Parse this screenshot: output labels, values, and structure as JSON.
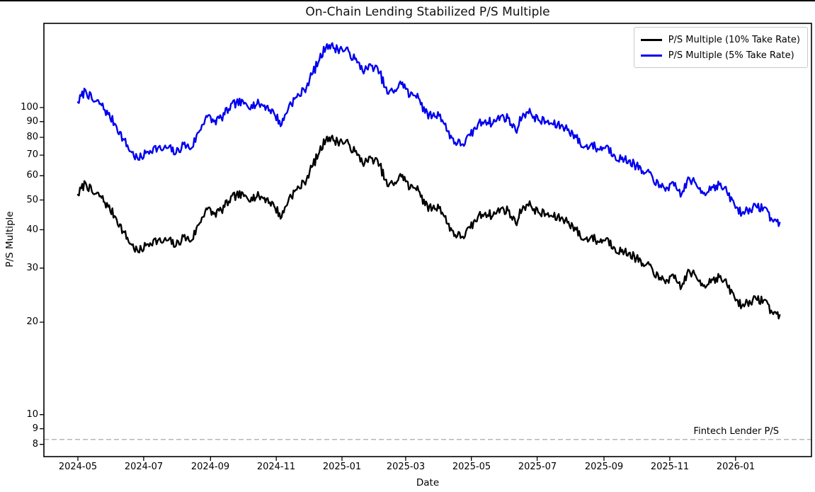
{
  "title": "On-Chain Lending Stabilized P/S Multiple",
  "axes": {
    "xlabel": "Date",
    "ylabel": "P/S Multiple"
  },
  "legend": {
    "items": [
      {
        "label": "P/S Multiple (10% Take Rate)",
        "color": "#000000"
      },
      {
        "label": "P/S Multiple (5% Take Rate)",
        "color": "#0000ee"
      }
    ]
  },
  "annotation": {
    "label": "Fintech Lender P/S",
    "value": 8.3
  },
  "chart_data": {
    "type": "line",
    "yscale": "log",
    "grid": false,
    "legend_position": "upper right",
    "title": "On-Chain Lending Stabilized P/S Multiple",
    "xlabel": "Date",
    "ylabel": "P/S Multiple",
    "x_tick_labels": [
      "2024-05",
      "2024-07",
      "2024-09",
      "2024-11",
      "2025-01",
      "2025-03",
      "2025-05",
      "2025-07",
      "2025-09",
      "2025-11",
      "2026-01"
    ],
    "y_ticks": [
      100,
      90,
      80,
      70,
      60,
      50,
      40,
      30,
      20,
      10,
      9,
      8
    ],
    "ylim": [
      7.3,
      188
    ],
    "hline": {
      "value": 8.3,
      "label": "Fintech Lender P/S",
      "color": "#b0b0b0",
      "style": "dashed"
    },
    "dates": [
      "2024-05-01",
      "2024-05-08",
      "2024-05-15",
      "2024-05-22",
      "2024-05-29",
      "2024-06-05",
      "2024-06-12",
      "2024-06-19",
      "2024-06-26",
      "2024-07-03",
      "2024-07-10",
      "2024-07-17",
      "2024-07-24",
      "2024-07-31",
      "2024-08-07",
      "2024-08-14",
      "2024-08-21",
      "2024-08-28",
      "2024-09-04",
      "2024-09-11",
      "2024-09-18",
      "2024-09-25",
      "2024-10-02",
      "2024-10-09",
      "2024-10-16",
      "2024-10-23",
      "2024-10-30",
      "2024-11-06",
      "2024-11-13",
      "2024-11-20",
      "2024-11-27",
      "2024-12-04",
      "2024-12-11",
      "2024-12-18",
      "2024-12-25",
      "2025-01-01",
      "2025-01-08",
      "2025-01-15",
      "2025-01-22",
      "2025-01-29",
      "2025-02-05",
      "2025-02-12",
      "2025-02-19",
      "2025-02-26",
      "2025-03-05",
      "2025-03-12",
      "2025-03-19",
      "2025-03-26",
      "2025-04-02",
      "2025-04-09",
      "2025-04-16",
      "2025-04-23",
      "2025-04-30",
      "2025-05-07",
      "2025-05-14",
      "2025-05-21",
      "2025-05-28",
      "2025-06-04",
      "2025-06-11",
      "2025-06-18",
      "2025-06-25",
      "2025-07-02",
      "2025-07-09",
      "2025-07-16",
      "2025-07-23",
      "2025-07-30",
      "2025-08-06",
      "2025-08-13",
      "2025-08-20",
      "2025-08-27",
      "2025-09-03",
      "2025-09-10",
      "2025-09-17",
      "2025-09-24",
      "2025-10-01",
      "2025-10-08",
      "2025-10-15",
      "2025-10-22",
      "2025-10-29",
      "2025-11-05",
      "2025-11-12",
      "2025-11-19",
      "2025-11-26",
      "2025-12-03",
      "2025-12-10",
      "2025-12-17",
      "2025-12-24",
      "2025-12-31",
      "2026-01-07",
      "2026-01-14",
      "2026-01-21",
      "2026-01-28",
      "2026-02-04",
      "2026-02-11"
    ],
    "series": [
      {
        "name": "P/S Multiple (10% Take Rate)",
        "color": "#000000",
        "values": [
          52,
          57,
          52.5,
          51.5,
          47.5,
          44,
          39.5,
          36,
          33.8,
          35.5,
          37,
          36.5,
          37,
          35.5,
          38,
          36.8,
          41.5,
          47,
          45,
          46.3,
          49.5,
          52,
          51.4,
          51,
          51.4,
          50.5,
          47.8,
          44,
          51,
          54,
          57,
          64,
          71.5,
          80.5,
          78,
          77.5,
          75.5,
          70,
          66,
          68.5,
          65,
          55.5,
          57,
          60.4,
          54.5,
          55.5,
          48,
          47,
          47.5,
          41.8,
          38.5,
          38,
          40.5,
          44,
          45.5,
          44.5,
          46.8,
          46.2,
          42,
          47.8,
          48,
          45.5,
          45,
          44,
          43.6,
          42.5,
          40,
          37,
          38,
          36.5,
          37.5,
          35.2,
          33.9,
          33.6,
          32.3,
          30.4,
          30.3,
          27.5,
          27.5,
          27.8,
          26.1,
          29.5,
          27.8,
          26.4,
          27.6,
          28,
          26.5,
          24.1,
          22.6,
          23.5,
          23.6,
          23.7,
          21.5,
          21.1
        ]
      },
      {
        "name": "P/S Multiple (5% Take Rate)",
        "color": "#0000ee",
        "values": [
          104,
          114,
          105,
          103,
          95,
          88,
          79,
          72,
          67.6,
          71,
          74,
          73,
          74,
          71,
          76,
          73.6,
          83,
          94,
          90,
          92.6,
          99,
          104,
          102.8,
          102,
          102.8,
          101,
          95.6,
          88,
          102,
          108,
          114,
          128,
          143,
          161,
          156,
          155,
          151,
          140,
          132,
          137,
          130,
          111,
          114,
          120.8,
          109,
          111,
          96,
          94,
          95,
          83.6,
          77,
          76,
          81,
          88,
          91,
          89,
          93.6,
          92.4,
          84,
          95.6,
          96,
          91,
          90,
          88,
          87.2,
          85,
          80,
          74,
          76,
          73,
          75,
          70.4,
          67.8,
          67.2,
          64.6,
          60.8,
          60.6,
          55,
          55,
          55.6,
          52.2,
          59,
          55.6,
          52.8,
          55.2,
          56,
          53,
          48.2,
          45.2,
          47,
          47.2,
          47.4,
          43,
          42.2
        ]
      }
    ]
  }
}
